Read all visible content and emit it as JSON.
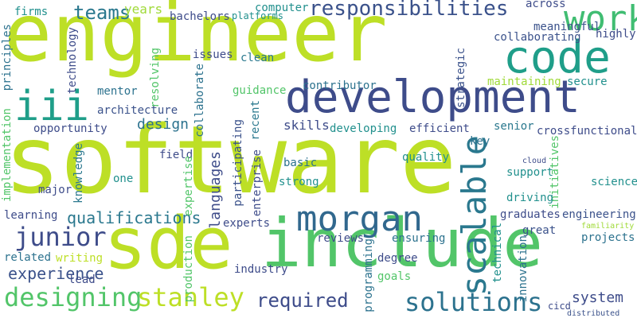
{
  "background": "#ffffff",
  "words": [
    {
      "id": "software",
      "text": "software",
      "color": "#bddf26"
    },
    {
      "id": "engineer",
      "text": "engineer",
      "color": "#bddf26"
    },
    {
      "id": "sde",
      "text": "sde",
      "color": "#bddf26"
    },
    {
      "id": "include",
      "text": "include",
      "color": "#52c569"
    },
    {
      "id": "development",
      "text": "development",
      "color": "#3e4c8a"
    },
    {
      "id": "code",
      "text": "code",
      "color": "#1f9e89"
    },
    {
      "id": "iii",
      "text": "iii",
      "color": "#1f9e89"
    },
    {
      "id": "work",
      "text": "work",
      "color": "#40bd72"
    },
    {
      "id": "morgan",
      "text": "morgan",
      "color": "#31688e"
    },
    {
      "id": "scalable",
      "text": "scalable",
      "color": "#2a788e"
    },
    {
      "id": "solutions",
      "text": "solutions",
      "color": "#2c728e"
    },
    {
      "id": "designing",
      "text": "designing",
      "color": "#52c569"
    },
    {
      "id": "stanley",
      "text": "stanley",
      "color": "#bddf26"
    },
    {
      "id": "junior",
      "text": "junior",
      "color": "#3e4c8a"
    },
    {
      "id": "responsibilities",
      "text": "responsibilities",
      "color": "#3b528b"
    },
    {
      "id": "teams",
      "text": "teams",
      "color": "#2a788e"
    },
    {
      "id": "required",
      "text": "required",
      "color": "#3e4c8a"
    },
    {
      "id": "qualifications",
      "text": "qualifications",
      "color": "#2a788e"
    },
    {
      "id": "experience",
      "text": "experience",
      "color": "#3b528b"
    },
    {
      "id": "system",
      "text": "system",
      "color": "#3e4c8a"
    },
    {
      "id": "design",
      "text": "design",
      "color": "#2c728e"
    },
    {
      "id": "languages",
      "text": "languages",
      "color": "#3e4c8a"
    },
    {
      "id": "years",
      "text": "years",
      "color": "#a0da39"
    },
    {
      "id": "skills",
      "text": "skills",
      "color": "#3e4c8a"
    },
    {
      "id": "firms",
      "text": "firms",
      "color": "#21908d"
    },
    {
      "id": "computer",
      "text": "computer",
      "color": "#21908d"
    },
    {
      "id": "bachelors",
      "text": "bachelors",
      "color": "#3e4c8a"
    },
    {
      "id": "platforms",
      "text": "platforms",
      "color": "#21908d"
    },
    {
      "id": "across",
      "text": "across",
      "color": "#3e4c8a"
    },
    {
      "id": "meaningful",
      "text": "meaningful",
      "color": "#3b528b"
    },
    {
      "id": "highly",
      "text": "highly",
      "color": "#3e4c8a"
    },
    {
      "id": "collaborating",
      "text": "collaborating",
      "color": "#3b528b"
    },
    {
      "id": "principles",
      "text": "principles",
      "color": "#2c728e"
    },
    {
      "id": "technology",
      "text": "technology",
      "color": "#3e4c8a"
    },
    {
      "id": "resolving",
      "text": "resolving",
      "color": "#52c569"
    },
    {
      "id": "issues",
      "text": "issues",
      "color": "#3e4c8a"
    },
    {
      "id": "collaborate",
      "text": "collaborate",
      "color": "#2c728e"
    },
    {
      "id": "clean",
      "text": "clean",
      "color": "#2a788e"
    },
    {
      "id": "strategic",
      "text": "strategic",
      "color": "#3b528b"
    },
    {
      "id": "maintaining",
      "text": "maintaining",
      "color": "#a0da39"
    },
    {
      "id": "secure",
      "text": "secure",
      "color": "#21908d"
    },
    {
      "id": "contributor",
      "text": "contributor",
      "color": "#2c728e"
    },
    {
      "id": "guidance",
      "text": "guidance",
      "color": "#52c569"
    },
    {
      "id": "recent",
      "text": "recent",
      "color": "#2a788e"
    },
    {
      "id": "mentor",
      "text": "mentor",
      "color": "#2c728e"
    },
    {
      "id": "architecture",
      "text": "architecture",
      "color": "#3b528b"
    },
    {
      "id": "implementation",
      "text": "implementation",
      "color": "#52c569"
    },
    {
      "id": "opportunity",
      "text": "opportunity",
      "color": "#3e4c8a"
    },
    {
      "id": "knowledge",
      "text": "knowledge",
      "color": "#2a788e"
    },
    {
      "id": "developing",
      "text": "developing",
      "color": "#21908d"
    },
    {
      "id": "efficient",
      "text": "efficient",
      "color": "#3e4c8a"
    },
    {
      "id": "senior",
      "text": "senior",
      "color": "#2a788e"
    },
    {
      "id": "crossfunctional",
      "text": "crossfunctional",
      "color": "#3e4c8a"
    },
    {
      "id": "key",
      "text": "key",
      "color": "#2c728e"
    },
    {
      "id": "field",
      "text": "field",
      "color": "#3e4c8a"
    },
    {
      "id": "participating",
      "text": "participating",
      "color": "#3b528b"
    },
    {
      "id": "basic",
      "text": "basic",
      "color": "#2c728e"
    },
    {
      "id": "quality",
      "text": "quality",
      "color": "#21908d"
    },
    {
      "id": "cloud",
      "text": "cloud",
      "color": "#3e4c8a"
    },
    {
      "id": "initiatives",
      "text": "initiatives",
      "color": "#52c569"
    },
    {
      "id": "support",
      "text": "support",
      "color": "#21908d"
    },
    {
      "id": "one",
      "text": "one",
      "color": "#21908d"
    },
    {
      "id": "expertise",
      "text": "expertise",
      "color": "#52c569"
    },
    {
      "id": "enterprise",
      "text": "enterprise",
      "color": "#3e4c8a"
    },
    {
      "id": "strong",
      "text": "strong",
      "color": "#21908d"
    },
    {
      "id": "science",
      "text": "science",
      "color": "#21908d"
    },
    {
      "id": "major",
      "text": "major",
      "color": "#3e4c8a"
    },
    {
      "id": "driving",
      "text": "driving",
      "color": "#21908d"
    },
    {
      "id": "learning",
      "text": "learning",
      "color": "#3e4c8a"
    },
    {
      "id": "graduates",
      "text": "graduates",
      "color": "#3e4c8a"
    },
    {
      "id": "engineering",
      "text": "engineering",
      "color": "#3b528b"
    },
    {
      "id": "experts",
      "text": "experts",
      "color": "#3e4c8a"
    },
    {
      "id": "great",
      "text": "great",
      "color": "#3b528b"
    },
    {
      "id": "familiarity",
      "text": "familiarity",
      "color": "#a0da39"
    },
    {
      "id": "projects",
      "text": "projects",
      "color": "#2c728e"
    },
    {
      "id": "technical",
      "text": "technical",
      "color": "#21908d"
    },
    {
      "id": "reviews",
      "text": "reviews",
      "color": "#3e4c8a"
    },
    {
      "id": "ensuring",
      "text": "ensuring",
      "color": "#2c728e"
    },
    {
      "id": "related",
      "text": "related",
      "color": "#2c728e"
    },
    {
      "id": "writing",
      "text": "writing",
      "color": "#bddf26"
    },
    {
      "id": "production",
      "text": "production",
      "color": "#52c569"
    },
    {
      "id": "industry",
      "text": "industry",
      "color": "#3e4c8a"
    },
    {
      "id": "degree",
      "text": "degree",
      "color": "#3e4c8a"
    },
    {
      "id": "goals",
      "text": "goals",
      "color": "#52c569"
    },
    {
      "id": "lead",
      "text": "lead",
      "color": "#3e4c8a"
    },
    {
      "id": "programming",
      "text": "programming",
      "color": "#2c728e"
    },
    {
      "id": "innovation",
      "text": "innovation",
      "color": "#2c728e"
    },
    {
      "id": "cicd",
      "text": "cicd",
      "color": "#3e4c8a"
    },
    {
      "id": "distributed",
      "text": "distributed",
      "color": "#3b528b"
    }
  ]
}
